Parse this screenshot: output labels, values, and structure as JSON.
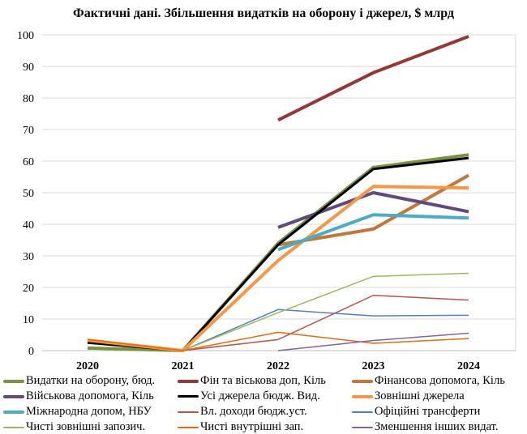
{
  "chart_data": {
    "type": "line",
    "title": "Фактичні дані. Збільшення видатків на оборону і джерел, $ млрд",
    "x": [
      "2020",
      "2021",
      "2022",
      "2023",
      "2024"
    ],
    "ylim": [
      0,
      100
    ],
    "yticks": [
      0,
      10,
      20,
      30,
      40,
      50,
      60,
      70,
      80,
      90,
      100
    ],
    "grid": true,
    "legend_position": "bottom",
    "series": [
      {
        "name": "Видатки на оборону, бюд.",
        "color": "#77933c",
        "width": 4,
        "values": [
          0.8,
          0,
          34,
          58,
          62
        ]
      },
      {
        "name": "Фін та віськова доп, Кіль",
        "color": "#953735",
        "width": 4,
        "values": [
          null,
          null,
          73,
          88,
          99.5
        ]
      },
      {
        "name": "Фінансова допомога, Кіль",
        "color": "#c0783a",
        "width": 4,
        "values": [
          null,
          null,
          33.5,
          38.5,
          55.5
        ]
      },
      {
        "name": "Військова допомога, Кіль",
        "color": "#604a7b",
        "width": 4,
        "values": [
          null,
          null,
          39,
          50,
          44
        ]
      },
      {
        "name": "Усі джерела бюдж. Вид.",
        "color": "#000000",
        "width": 3,
        "values": [
          2.5,
          0,
          33.5,
          57.5,
          61
        ]
      },
      {
        "name": "Зовнішні джерела",
        "color": "#f79646",
        "width": 4,
        "values": [
          3.3,
          0,
          28.5,
          52,
          51.5
        ]
      },
      {
        "name": "Міжнародна допом, НБУ",
        "color": "#4bacc6",
        "width": 4,
        "values": [
          null,
          null,
          32,
          43,
          42
        ]
      },
      {
        "name": "Вл. доходи бюдж.уст.",
        "color": "#c0504d",
        "width": 1.5,
        "values": [
          null,
          0,
          3.5,
          17.5,
          16
        ]
      },
      {
        "name": "Офіційні трансферти",
        "color": "#4f81bd",
        "width": 1.5,
        "values": [
          null,
          0,
          13,
          11,
          11.2
        ]
      },
      {
        "name": "Чисті зовнішні запозич.",
        "color": "#9bbb59",
        "width": 1.5,
        "values": [
          null,
          0,
          12,
          23.5,
          24.5
        ]
      },
      {
        "name": "Чисті внутрішні зап.",
        "color": "#e46c0a",
        "width": 1.5,
        "values": [
          3.5,
          0,
          5.8,
          2.3,
          3.8
        ]
      },
      {
        "name": "Зменшення інших видат.",
        "color": "#8064a2",
        "width": 1.5,
        "values": [
          null,
          null,
          0,
          3.2,
          5.5
        ]
      }
    ]
  }
}
